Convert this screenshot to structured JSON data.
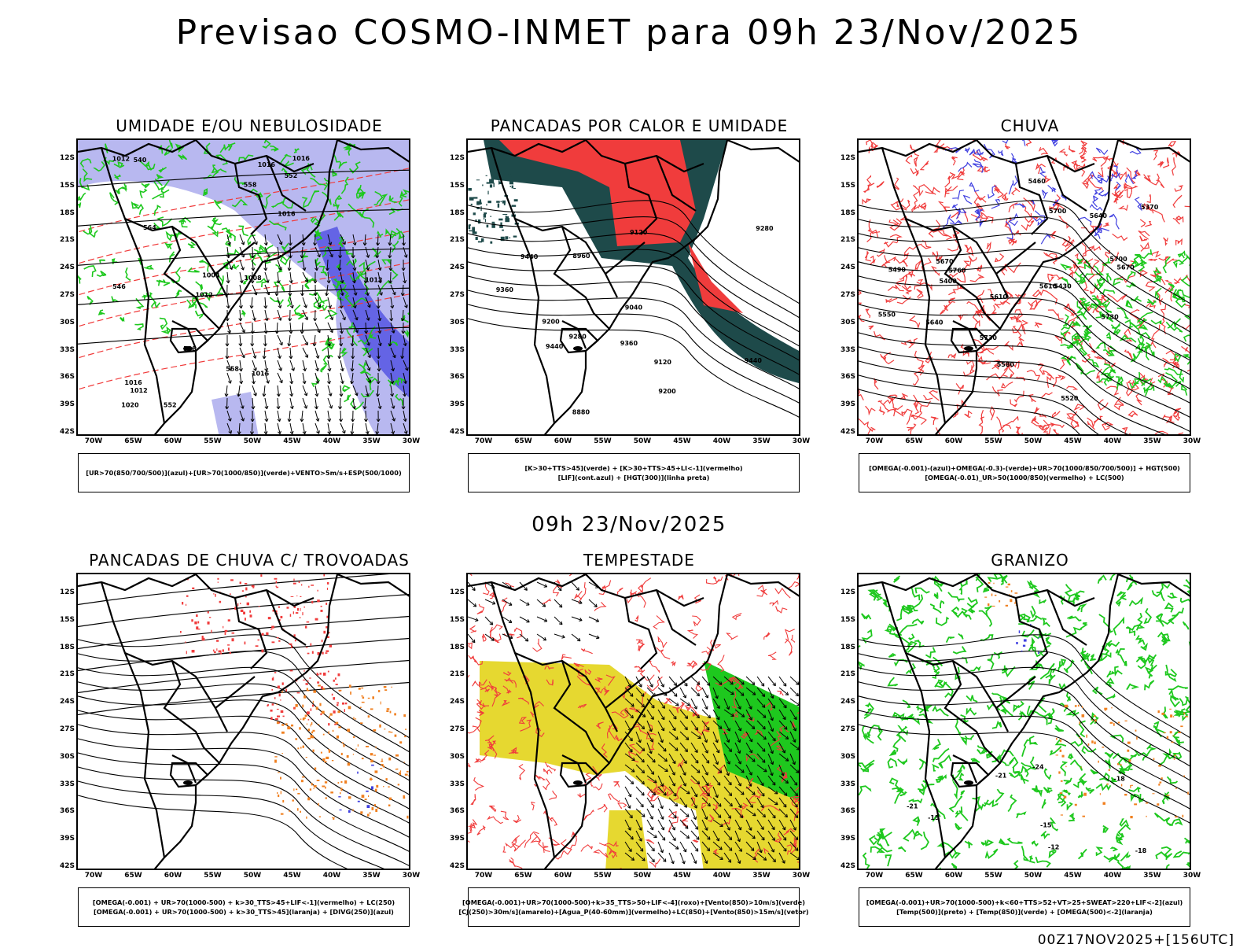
{
  "title": "Previsao COSMO-INMET  para 09h 23/Nov/2025",
  "mid_title": "09h 23/Nov/2025",
  "footer": "00Z17NOV2025+[156UTC]",
  "lat_labels": [
    "12S",
    "15S",
    "18S",
    "21S",
    "24S",
    "27S",
    "30S",
    "33S",
    "36S",
    "39S",
    "42S"
  ],
  "lon_labels": [
    "70W",
    "65W",
    "60W",
    "55W",
    "50W",
    "45W",
    "40W",
    "35W",
    "30W"
  ],
  "panels": [
    {
      "title": "UMIDADE E/OU NEBULOSIDADE",
      "legend": [
        "[UR>70(850/700/500)](azul)+[UR>70(1000/850)](verde)+VENTO>5m/s+ESP(500/1000)"
      ],
      "contour_labels": [
        "1012",
        "1016",
        "1016",
        "1012",
        "1016",
        "1012",
        "1016",
        "1020",
        "1012",
        "1008",
        "1004",
        "1016",
        "564",
        "558",
        "552",
        "546",
        "540",
        "588",
        "558",
        "552"
      ]
    },
    {
      "title": "PANCADAS POR CALOR E UMIDADE",
      "legend": [
        "[K>30+TTS>45](verde) + [K>30+TTS>45+LI<-1](vermelho)",
        "[LIF](cont.azul) + [HGT(300)](linha preta)"
      ],
      "contour_labels": [
        "9440",
        "9440",
        "9440",
        "9360",
        "9360",
        "9280",
        "9280",
        "9200",
        "9120",
        "9040",
        "8960",
        "8880",
        "9200",
        "9120"
      ]
    },
    {
      "title": "CHUVA",
      "legend": [
        "[OMEGA(-0.001)-(azul)+OMEGA(-0.3)-(verde)+UR>70(1000/850/700/500)] + HGT(500)",
        "[OMEGA(-0.01)_UR>50(1000/850)(vermelho) + LC(500)"
      ],
      "contour_labels": [
        "5760",
        "5730",
        "5730",
        "5700",
        "5700",
        "5670",
        "5640",
        "5610",
        "5580",
        "5550",
        "5520",
        "5490",
        "5460",
        "5430",
        "5400",
        "5370",
        "5670",
        "5640",
        "5610"
      ]
    },
    {
      "title": "PANCADAS DE CHUVA C/ TROVOADAS",
      "legend": [
        "[OMEGA(-0.001) + UR>70(1000-500) + k>30_TTS>45+LIF<-1](vermelho) + LC(250)",
        "[OMEGA(-0.001) + UR>70(1000-500) + k>30_TTS>45](laranja) + [DIVG(250)](azul)"
      ],
      "contour_labels": []
    },
    {
      "title": "TEMPESTADE",
      "legend": [
        "[OMEGA(-0.001)+UR>70(1000-500)+k>35_TTS>50+LIF<-4](roxo)+[Vento(850)>10m/s](verde)",
        "[CJ(250)>30m/s](amarelo)+[Agua_P(40-60mm)](vermelho)+LC(850)+[Vento(850)>15m/s](vetor)"
      ],
      "contour_labels": []
    },
    {
      "title": "GRANIZO",
      "legend": [
        "[OMEGA(-0.001)+UR>70(1000-500)+k<60+TTS>52+VT>25+SWEAT>220+LIF<-2](azul)",
        "[Temp(500)](preto) + [Temp(850)](verde) + [OMEGA(500)<-2](laranja)"
      ],
      "contour_labels": [
        "-12",
        "-15",
        "-18",
        "-21",
        "-24",
        "-21",
        "-18",
        "-15"
      ]
    }
  ],
  "colors": {
    "blue_humidity": "#b8b8f0",
    "blue_dark": "#4040e0",
    "green": "#1ec81e",
    "red": "#f03c3c",
    "dark_teal": "#1e4a4a",
    "yellow": "#e6d830",
    "orange": "#f08020",
    "black": "#000000"
  }
}
